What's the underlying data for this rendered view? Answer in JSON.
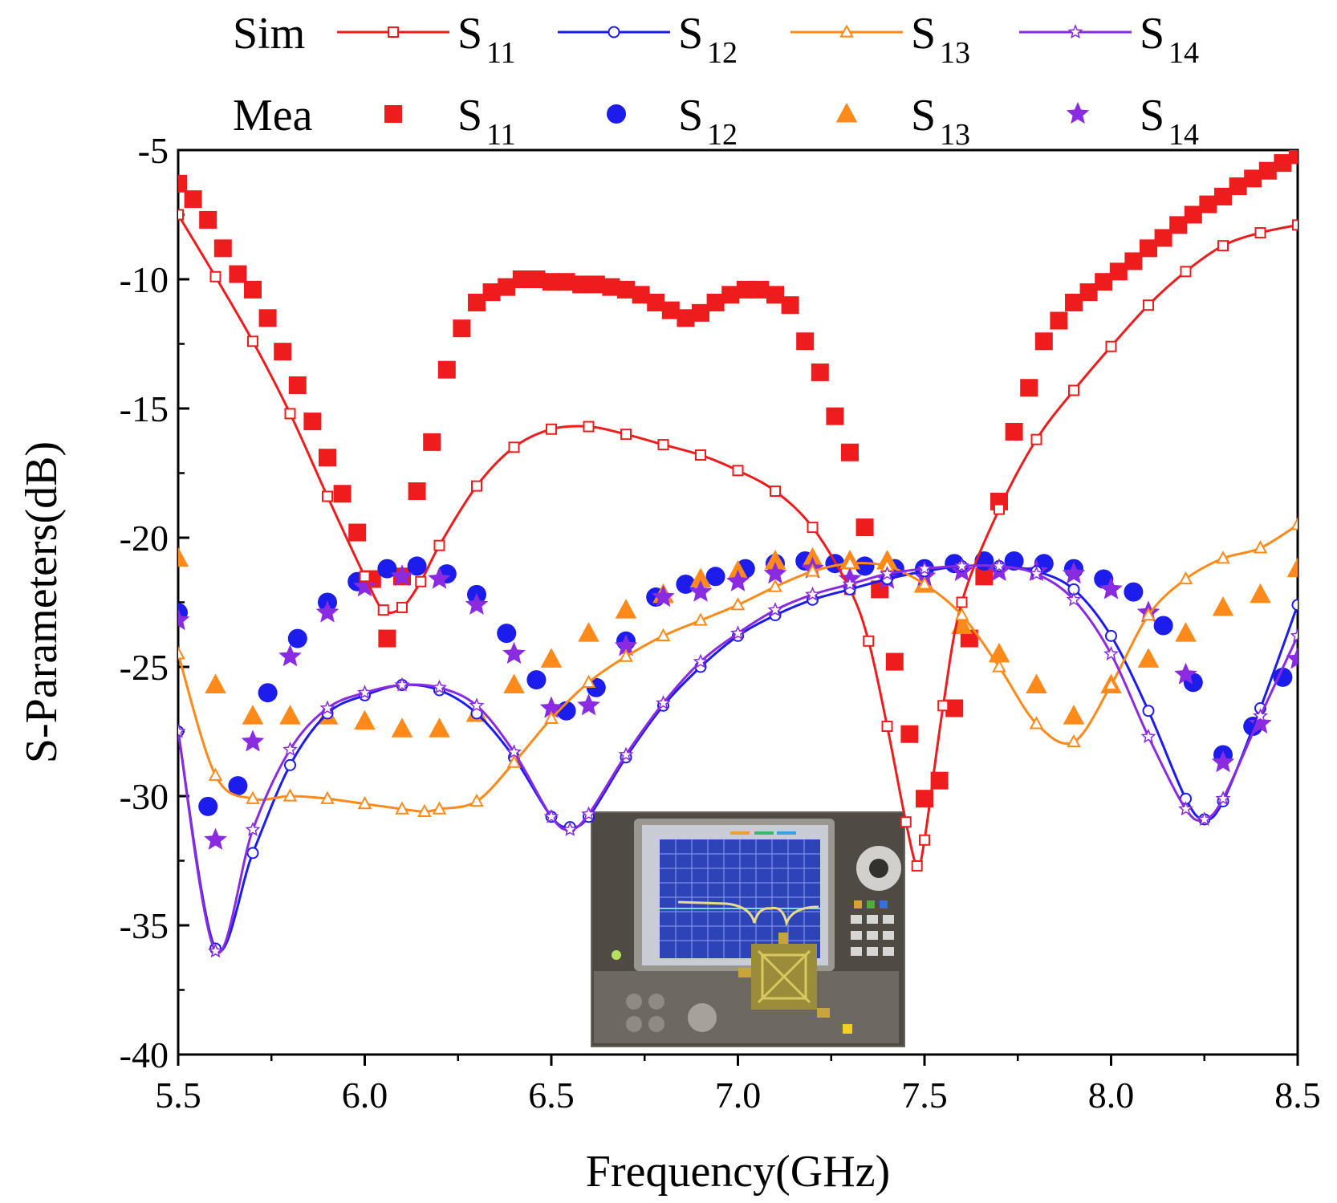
{
  "chart_data": {
    "type": "line",
    "title": "",
    "xlabel": "Frequency(GHz)",
    "ylabel": "S-Parameters(dB)",
    "xlim": [
      5.5,
      8.5
    ],
    "ylim": [
      -40,
      -5
    ],
    "xticks": [
      "5.5",
      "6.0",
      "6.5",
      "7.0",
      "7.5",
      "8.0",
      "8.5"
    ],
    "yticks": [
      "-5",
      "-10",
      "-15",
      "-20",
      "-25",
      "-30",
      "-35",
      "-40"
    ],
    "legend": {
      "sim_label": "Sim",
      "mea_label": "Mea",
      "entries": [
        {
          "key": "S11",
          "base": "S",
          "sub": "11"
        },
        {
          "key": "S12",
          "base": "S",
          "sub": "12"
        },
        {
          "key": "S13",
          "base": "S",
          "sub": "13"
        },
        {
          "key": "S14",
          "base": "S",
          "sub": "14"
        }
      ]
    },
    "colors": {
      "S11": "#ee1c1c",
      "S12": "#1c1ced",
      "S13": "#ff8a1a",
      "S14": "#8a2be2"
    },
    "simulated": [
      {
        "name": "S11",
        "marker": "square-open",
        "x": [
          5.5,
          5.6,
          5.7,
          5.8,
          5.9,
          6.0,
          6.05,
          6.1,
          6.15,
          6.2,
          6.3,
          6.4,
          6.5,
          6.6,
          6.7,
          6.8,
          6.9,
          7.0,
          7.1,
          7.2,
          7.3,
          7.35,
          7.4,
          7.45,
          7.48,
          7.5,
          7.55,
          7.6,
          7.7,
          7.8,
          7.9,
          8.0,
          8.1,
          8.2,
          8.3,
          8.4,
          8.5
        ],
        "y": [
          -7.5,
          -9.9,
          -12.4,
          -15.2,
          -18.4,
          -21.5,
          -22.8,
          -22.7,
          -21.7,
          -20.3,
          -18.0,
          -16.5,
          -15.8,
          -15.7,
          -16.0,
          -16.4,
          -16.8,
          -17.4,
          -18.2,
          -19.6,
          -22.0,
          -24.0,
          -27.3,
          -31.0,
          -32.7,
          -31.7,
          -26.5,
          -22.5,
          -18.9,
          -16.2,
          -14.3,
          -12.6,
          -11.0,
          -9.7,
          -8.7,
          -8.2,
          -7.9
        ]
      },
      {
        "name": "S12",
        "marker": "circle-open",
        "x": [
          5.5,
          5.6,
          5.7,
          5.8,
          5.9,
          6.0,
          6.1,
          6.2,
          6.3,
          6.4,
          6.5,
          6.55,
          6.6,
          6.7,
          6.8,
          6.9,
          7.0,
          7.1,
          7.2,
          7.3,
          7.4,
          7.5,
          7.6,
          7.7,
          7.8,
          7.9,
          8.0,
          8.1,
          8.2,
          8.25,
          8.3,
          8.4,
          8.5
        ],
        "y": [
          -27.5,
          -35.9,
          -32.2,
          -28.8,
          -26.8,
          -26.1,
          -25.7,
          -25.9,
          -26.8,
          -28.5,
          -30.8,
          -31.2,
          -30.8,
          -28.5,
          -26.5,
          -25.0,
          -23.8,
          -23.0,
          -22.4,
          -22.0,
          -21.6,
          -21.3,
          -21.1,
          -21.1,
          -21.3,
          -22.0,
          -23.8,
          -26.7,
          -30.1,
          -30.9,
          -30.2,
          -26.6,
          -22.6
        ]
      },
      {
        "name": "S13",
        "marker": "triangle-open",
        "x": [
          5.5,
          5.6,
          5.7,
          5.8,
          5.9,
          6.0,
          6.1,
          6.16,
          6.2,
          6.3,
          6.4,
          6.5,
          6.6,
          6.7,
          6.8,
          6.9,
          7.0,
          7.1,
          7.2,
          7.3,
          7.4,
          7.5,
          7.6,
          7.7,
          7.8,
          7.9,
          8.0,
          8.1,
          8.2,
          8.3,
          8.4,
          8.5
        ],
        "y": [
          -24.5,
          -29.2,
          -30.1,
          -30.0,
          -30.1,
          -30.3,
          -30.5,
          -30.6,
          -30.5,
          -30.2,
          -28.7,
          -27.0,
          -25.6,
          -24.6,
          -23.8,
          -23.2,
          -22.6,
          -21.9,
          -21.3,
          -21.0,
          -21.1,
          -21.8,
          -23.0,
          -25.0,
          -27.2,
          -27.9,
          -25.7,
          -23.0,
          -21.6,
          -20.8,
          -20.4,
          -19.5
        ]
      },
      {
        "name": "S14",
        "marker": "star-open",
        "x": [
          5.5,
          5.6,
          5.7,
          5.8,
          5.9,
          6.0,
          6.1,
          6.2,
          6.3,
          6.4,
          6.5,
          6.55,
          6.6,
          6.7,
          6.8,
          6.9,
          7.0,
          7.1,
          7.2,
          7.3,
          7.4,
          7.5,
          7.6,
          7.7,
          7.8,
          7.9,
          8.0,
          8.1,
          8.2,
          8.25,
          8.3,
          8.4,
          8.5
        ],
        "y": [
          -27.5,
          -36.0,
          -31.3,
          -28.2,
          -26.6,
          -26.0,
          -25.7,
          -25.8,
          -26.5,
          -28.3,
          -30.8,
          -31.3,
          -30.7,
          -28.4,
          -26.4,
          -24.8,
          -23.7,
          -22.8,
          -22.2,
          -21.8,
          -21.4,
          -21.2,
          -21.1,
          -21.1,
          -21.4,
          -22.4,
          -24.5,
          -27.7,
          -30.5,
          -30.9,
          -30.1,
          -26.9,
          -23.8
        ]
      }
    ],
    "measured": [
      {
        "name": "S11",
        "marker": "square",
        "x": [
          5.5,
          5.54,
          5.58,
          5.62,
          5.66,
          5.7,
          5.74,
          5.78,
          5.82,
          5.86,
          5.9,
          5.94,
          5.98,
          6.02,
          6.06,
          6.1,
          6.14,
          6.18,
          6.22,
          6.26,
          6.3,
          6.34,
          6.38,
          6.42,
          6.46,
          6.5,
          6.54,
          6.58,
          6.62,
          6.66,
          6.7,
          6.74,
          6.78,
          6.82,
          6.86,
          6.9,
          6.94,
          6.98,
          7.02,
          7.06,
          7.1,
          7.14,
          7.18,
          7.22,
          7.26,
          7.3,
          7.34,
          7.38,
          7.42,
          7.46,
          7.5,
          7.54,
          7.58,
          7.62,
          7.66,
          7.7,
          7.74,
          7.78,
          7.82,
          7.86,
          7.9,
          7.94,
          7.98,
          8.02,
          8.06,
          8.1,
          8.14,
          8.18,
          8.22,
          8.26,
          8.3,
          8.34,
          8.38,
          8.42,
          8.46,
          8.5
        ],
        "y": [
          -6.3,
          -6.9,
          -7.7,
          -8.8,
          -9.8,
          -10.4,
          -11.5,
          -12.8,
          -14.1,
          -15.5,
          -16.9,
          -18.3,
          -19.8,
          -21.6,
          -23.9,
          -21.5,
          -18.2,
          -16.3,
          -13.5,
          -11.9,
          -10.9,
          -10.5,
          -10.3,
          -10.0,
          -10.0,
          -10.1,
          -10.1,
          -10.2,
          -10.2,
          -10.3,
          -10.4,
          -10.6,
          -10.9,
          -11.2,
          -11.5,
          -11.3,
          -10.9,
          -10.6,
          -10.4,
          -10.4,
          -10.6,
          -11.0,
          -12.4,
          -13.6,
          -15.3,
          -16.7,
          -19.6,
          -22.0,
          -24.8,
          -27.6,
          -30.1,
          -29.4,
          -26.6,
          -23.9,
          -21.5,
          -18.6,
          -15.9,
          -14.2,
          -12.4,
          -11.6,
          -10.9,
          -10.5,
          -10.1,
          -9.7,
          -9.3,
          -8.8,
          -8.4,
          -7.9,
          -7.5,
          -7.1,
          -6.8,
          -6.4,
          -6.1,
          -5.8,
          -5.5,
          -5.2
        ]
      },
      {
        "name": "S12",
        "marker": "circle",
        "x": [
          5.5,
          5.58,
          5.66,
          5.74,
          5.82,
          5.9,
          5.98,
          6.06,
          6.14,
          6.22,
          6.3,
          6.38,
          6.46,
          6.54,
          6.62,
          6.7,
          6.78,
          6.86,
          6.94,
          7.02,
          7.1,
          7.18,
          7.26,
          7.34,
          7.42,
          7.5,
          7.58,
          7.66,
          7.74,
          7.82,
          7.9,
          7.98,
          8.06,
          8.14,
          8.22,
          8.3,
          8.38,
          8.46
        ],
        "y": [
          -22.9,
          -30.4,
          -29.6,
          -26.0,
          -23.9,
          -22.5,
          -21.7,
          -21.2,
          -21.1,
          -21.4,
          -22.2,
          -23.7,
          -25.5,
          -26.7,
          -25.8,
          -24.0,
          -22.3,
          -21.8,
          -21.5,
          -21.2,
          -21.0,
          -20.9,
          -21.0,
          -21.1,
          -21.2,
          -21.2,
          -21.0,
          -20.9,
          -20.9,
          -21.0,
          -21.2,
          -21.6,
          -22.1,
          -23.4,
          -25.6,
          -28.4,
          -27.3,
          -25.4
        ]
      },
      {
        "name": "S13",
        "marker": "triangle",
        "x": [
          5.5,
          5.6,
          5.7,
          5.8,
          5.9,
          6.0,
          6.1,
          6.2,
          6.3,
          6.4,
          6.5,
          6.6,
          6.7,
          6.8,
          6.9,
          7.0,
          7.1,
          7.2,
          7.3,
          7.4,
          7.5,
          7.6,
          7.7,
          7.8,
          7.9,
          8.0,
          8.1,
          8.2,
          8.3,
          8.4,
          8.5
        ],
        "y": [
          -20.8,
          -25.7,
          -26.9,
          -26.9,
          -26.9,
          -27.1,
          -27.4,
          -27.4,
          -26.8,
          -25.7,
          -24.7,
          -23.7,
          -22.8,
          -22.2,
          -21.6,
          -21.3,
          -20.9,
          -20.8,
          -20.9,
          -20.9,
          -21.8,
          -23.4,
          -24.5,
          -25.7,
          -26.9,
          -25.7,
          -24.7,
          -23.7,
          -22.7,
          -22.2,
          -21.2
        ]
      },
      {
        "name": "S14",
        "marker": "star",
        "x": [
          5.5,
          5.6,
          5.7,
          5.8,
          5.9,
          6.0,
          6.1,
          6.2,
          6.3,
          6.4,
          6.5,
          6.6,
          6.7,
          6.8,
          6.9,
          7.0,
          7.1,
          7.2,
          7.3,
          7.4,
          7.5,
          7.6,
          7.7,
          7.8,
          7.9,
          8.0,
          8.1,
          8.2,
          8.3,
          8.4,
          8.5
        ],
        "y": [
          -23.2,
          -31.7,
          -27.9,
          -24.6,
          -22.9,
          -21.9,
          -21.5,
          -21.6,
          -22.6,
          -24.5,
          -26.6,
          -26.5,
          -24.2,
          -22.3,
          -22.1,
          -21.7,
          -21.4,
          -21.2,
          -21.6,
          -21.6,
          -21.5,
          -21.3,
          -21.3,
          -21.3,
          -21.4,
          -22.0,
          -22.9,
          -25.3,
          -28.7,
          -27.2,
          -24.7
        ]
      }
    ]
  }
}
